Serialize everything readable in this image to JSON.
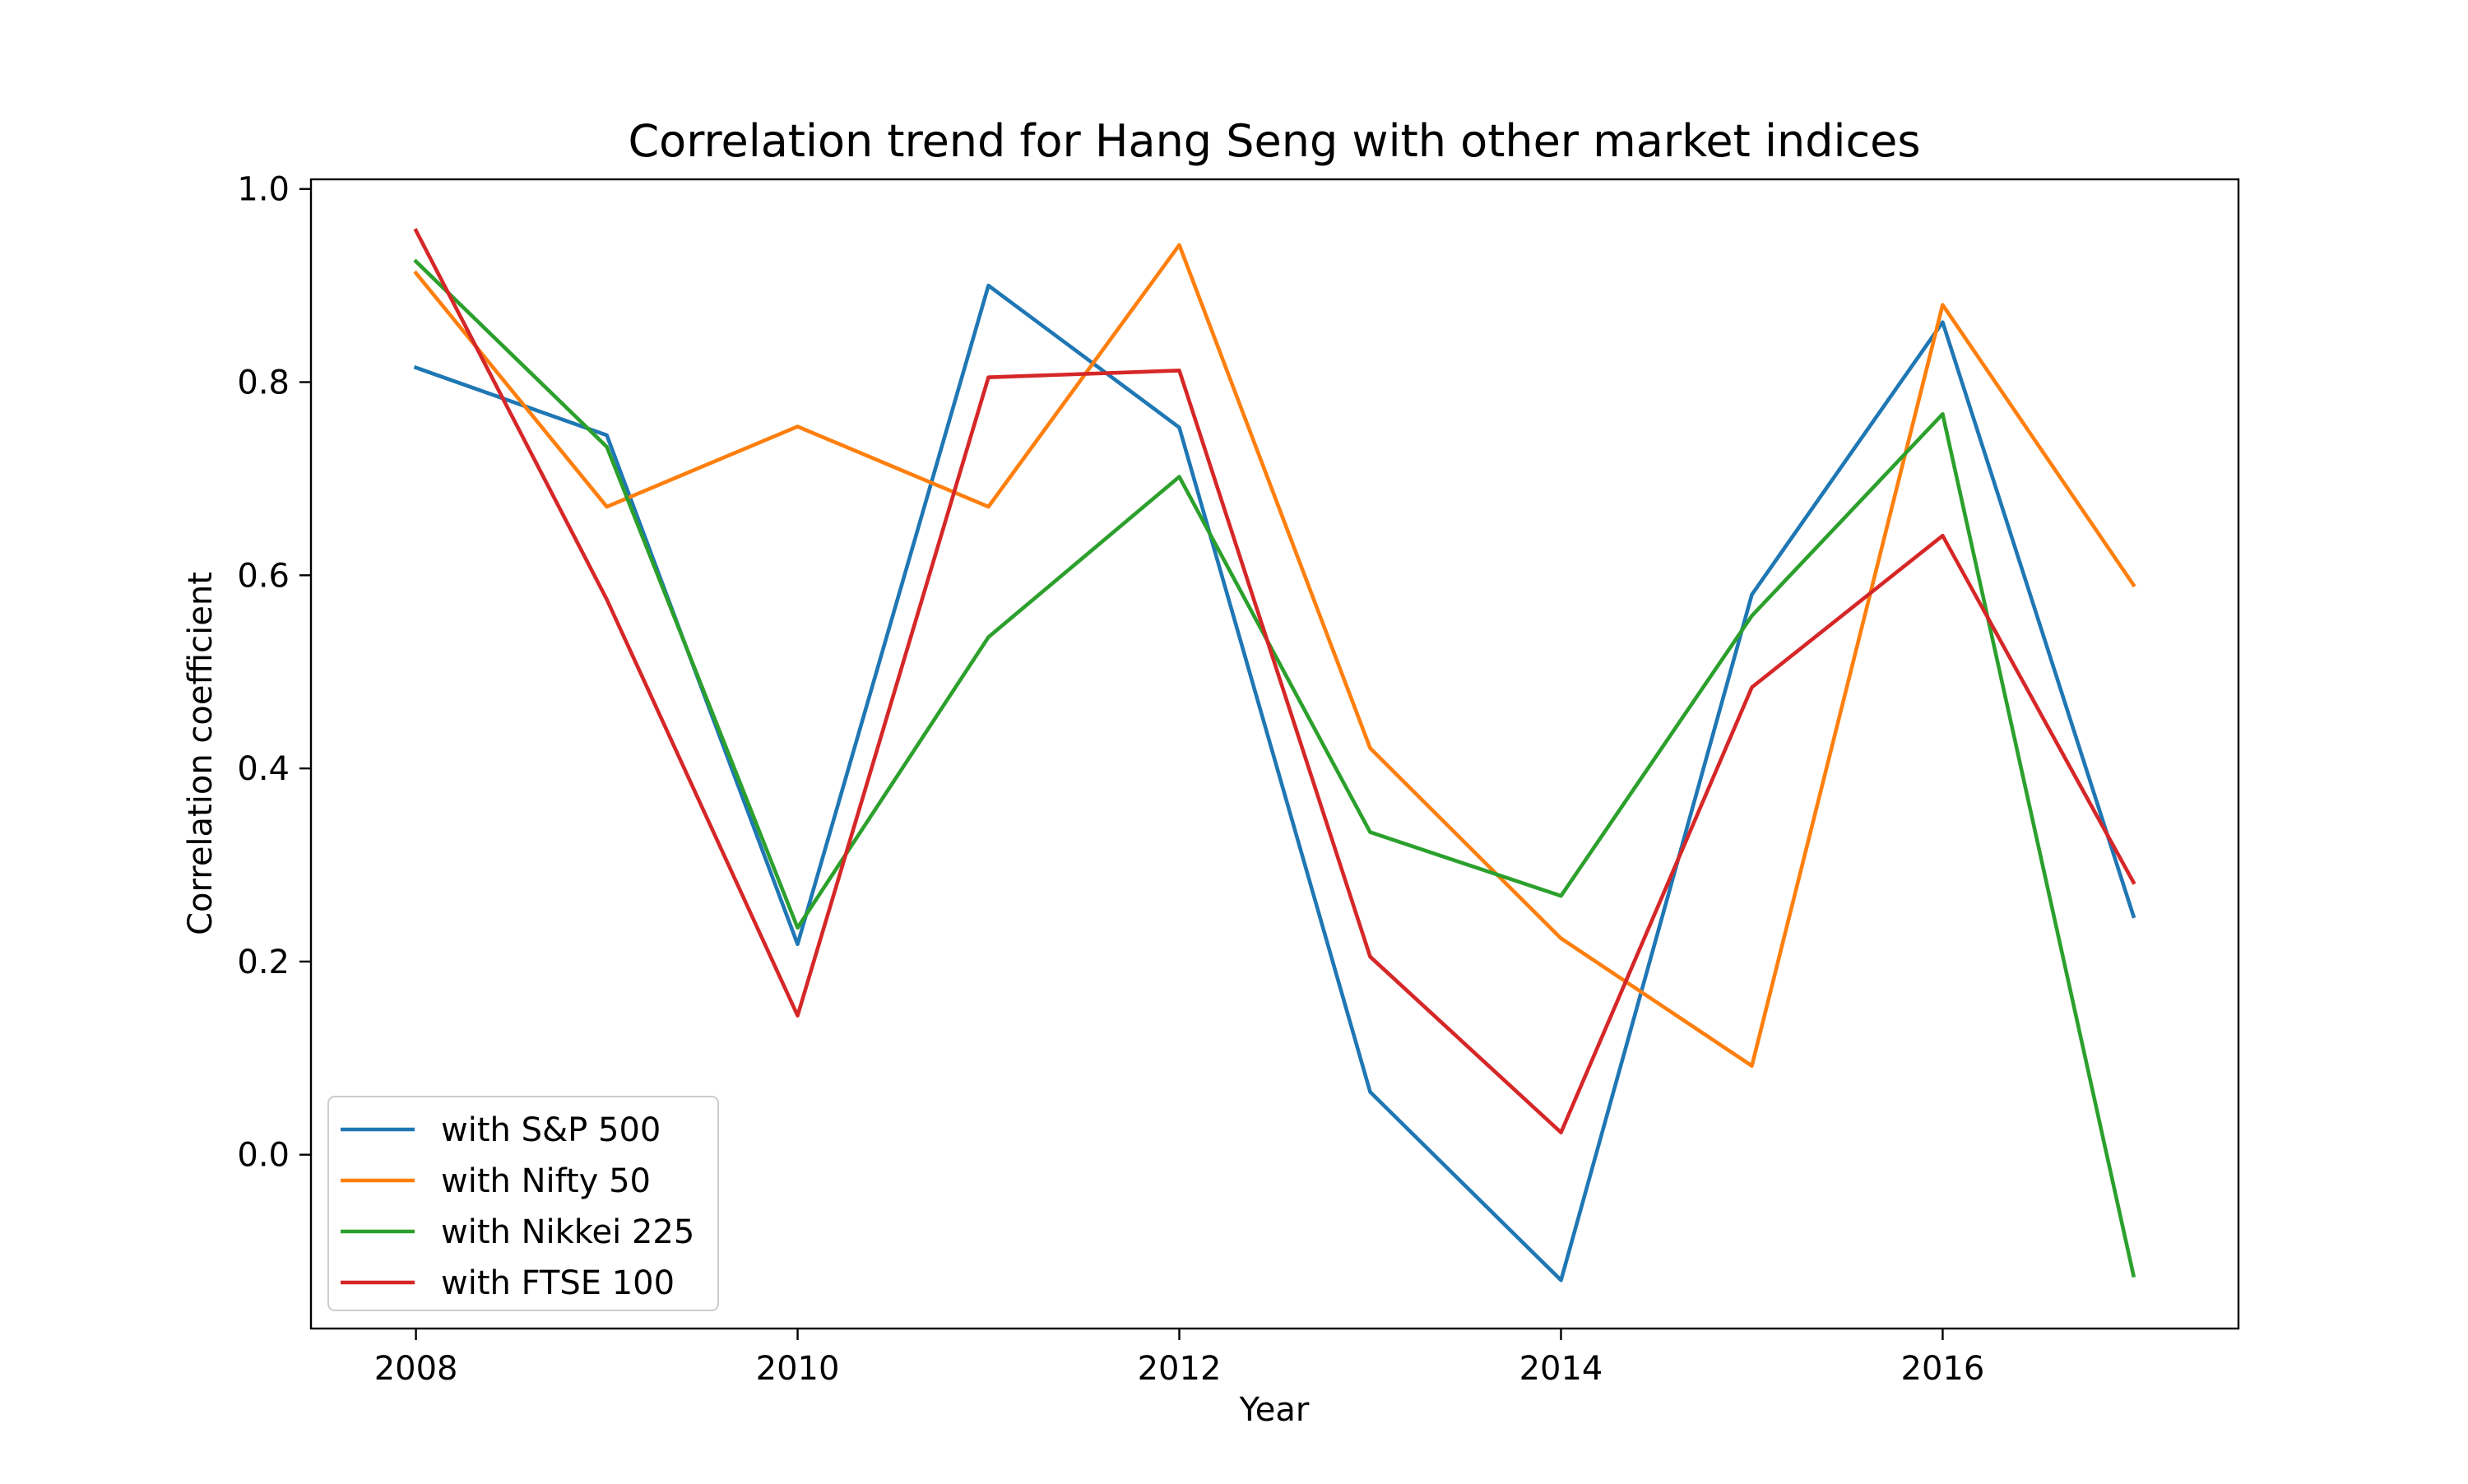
{
  "chart_data": {
    "type": "line",
    "title": "Correlation trend for Hang Seng with other market indices",
    "xlabel": "Year",
    "ylabel": "Correlation coefficient",
    "x": [
      2008,
      2009,
      2010,
      2011,
      2012,
      2013,
      2014,
      2015,
      2016,
      2017
    ],
    "xlim": [
      2007.45,
      2017.55
    ],
    "ylim": [
      -0.18,
      1.01
    ],
    "xticks": [
      2008,
      2010,
      2012,
      2014,
      2016
    ],
    "xtick_labels": [
      "2008",
      "2010",
      "2012",
      "2014",
      "2016"
    ],
    "yticks": [
      0.0,
      0.2,
      0.4,
      0.6,
      0.8,
      1.0
    ],
    "ytick_labels": [
      "0.0",
      "0.2",
      "0.4",
      "0.6",
      "0.8",
      "1.0"
    ],
    "grid": false,
    "legend_position": "lower-left",
    "series": [
      {
        "name": "with S&P 500",
        "color": "#1f77b4",
        "values": [
          0.815,
          0.745,
          0.218,
          0.9,
          0.753,
          0.065,
          -0.13,
          0.58,
          0.862,
          0.247
        ]
      },
      {
        "name": "with Nifty 50",
        "color": "#ff7f0e",
        "values": [
          0.913,
          0.671,
          0.754,
          0.671,
          0.942,
          0.421,
          0.224,
          0.092,
          0.88,
          0.59
        ]
      },
      {
        "name": "with Nikkei 225",
        "color": "#2ca02c",
        "values": [
          0.925,
          0.733,
          0.235,
          0.536,
          0.702,
          0.334,
          0.268,
          0.558,
          0.767,
          -0.125
        ]
      },
      {
        "name": "with FTSE 100",
        "color": "#d62728",
        "values": [
          0.957,
          0.575,
          0.144,
          0.805,
          0.812,
          0.205,
          0.023,
          0.484,
          0.641,
          0.282
        ]
      }
    ]
  }
}
